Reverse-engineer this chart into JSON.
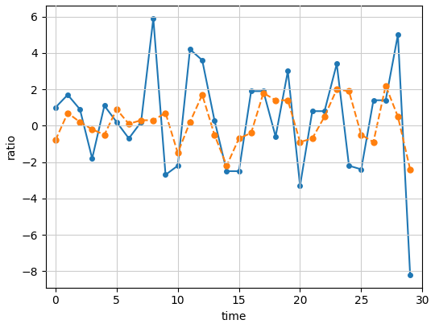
{
  "blue_x": [
    0,
    1,
    2,
    3,
    4,
    5,
    6,
    7,
    8,
    9,
    10,
    11,
    12,
    13,
    14,
    15,
    16,
    17,
    18,
    19,
    20,
    21,
    22,
    23,
    24,
    25,
    26,
    27,
    28,
    29
  ],
  "blue_y": [
    1.0,
    1.7,
    0.9,
    -1.8,
    1.1,
    0.2,
    -0.7,
    0.2,
    5.9,
    -2.7,
    -2.2,
    4.2,
    3.6,
    0.3,
    -2.5,
    -2.5,
    1.9,
    1.9,
    -0.6,
    3.0,
    -3.3,
    0.8,
    0.8,
    3.4,
    -2.2,
    -2.4,
    1.4,
    1.4,
    5.0,
    -8.2
  ],
  "orange_x": [
    0,
    1,
    2,
    3,
    4,
    5,
    6,
    7,
    8,
    9,
    10,
    11,
    12,
    13,
    14,
    15,
    16,
    17,
    18,
    19,
    20,
    21,
    22,
    23,
    24,
    25,
    26,
    27,
    28,
    29
  ],
  "orange_y": [
    -0.8,
    0.7,
    0.2,
    -0.2,
    -0.5,
    0.9,
    0.1,
    0.3,
    0.3,
    0.7,
    -1.5,
    0.2,
    1.7,
    -0.5,
    -2.2,
    -0.7,
    -0.4,
    1.8,
    1.4,
    1.4,
    -0.9,
    -0.7,
    0.5,
    2.0,
    1.9,
    -0.5,
    -0.9,
    2.2,
    0.5,
    -2.4
  ],
  "blue_color": "#1f77b4",
  "orange_color": "#ff7f0e",
  "xlabel": "time",
  "ylabel": "ratio",
  "grid": true,
  "figsize": [
    5.4,
    4.08
  ],
  "dpi": 100,
  "xlim": [
    -0.8,
    30.0
  ],
  "xticks": [
    0,
    5,
    10,
    15,
    20,
    25,
    30
  ]
}
